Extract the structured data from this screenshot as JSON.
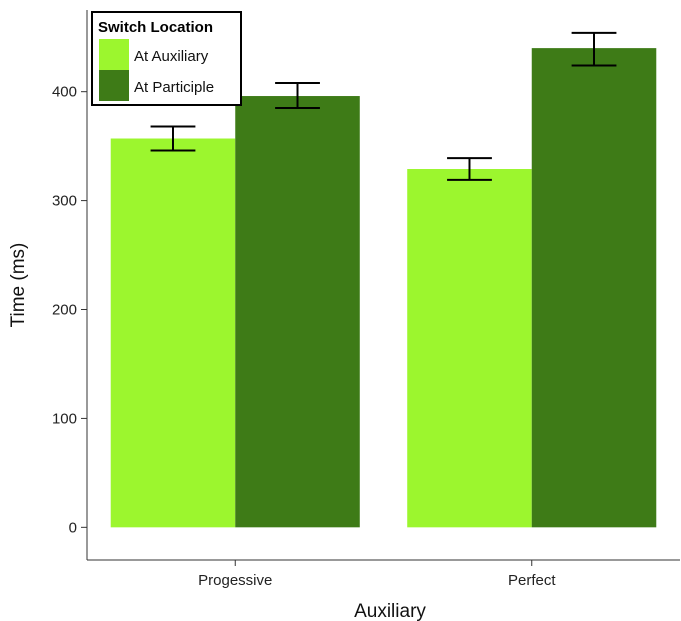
{
  "chart_data": {
    "type": "bar",
    "xlabel": "Auxiliary",
    "ylabel": "Time (ms)",
    "categories": [
      "Progessive",
      "Perfect"
    ],
    "ylim": [
      -30,
      475
    ],
    "yticks": [
      0,
      100,
      200,
      300,
      400
    ],
    "grid": false,
    "legend": {
      "title": "Switch Location",
      "position": "top-left"
    },
    "series": [
      {
        "name": "At Auxiliary",
        "color": "#9cf62e",
        "values": [
          357,
          329
        ],
        "error_low": [
          346,
          319
        ],
        "error_high": [
          368,
          339
        ]
      },
      {
        "name": "At Participle",
        "color": "#3e7b17",
        "values": [
          396,
          440
        ],
        "error_low": [
          385,
          424
        ],
        "error_high": [
          408,
          454
        ]
      }
    ]
  }
}
